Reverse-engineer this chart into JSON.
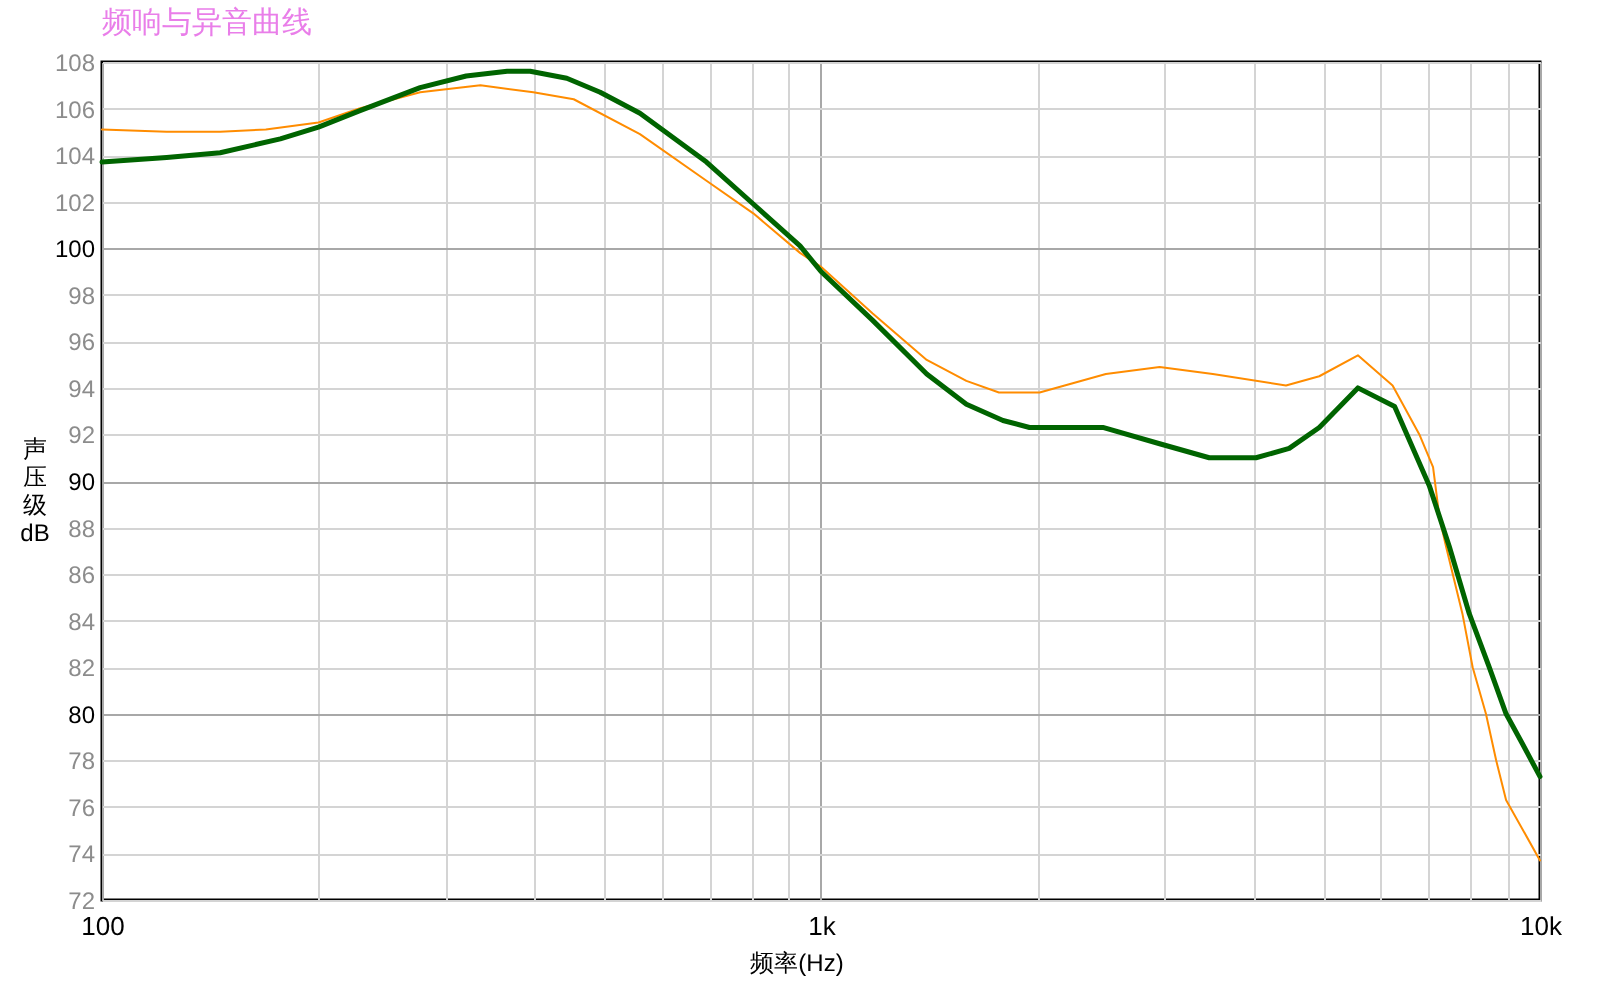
{
  "chart_data": {
    "type": "line",
    "title": "频响与异音曲线",
    "xlabel": "频率(Hz)",
    "ylabel": "声压级 dB",
    "log": "x",
    "grid": true,
    "legend": false,
    "xlim": [
      100,
      10000
    ],
    "ylim": [
      72,
      108
    ],
    "xticks": [
      100,
      {
        "value": 200,
        "label": null
      },
      {
        "value": 300,
        "label": null
      },
      {
        "value": 400,
        "label": null
      },
      {
        "value": 500,
        "label": null
      },
      {
        "value": 600,
        "label": null
      },
      {
        "value": 700,
        "label": null
      },
      {
        "value": 800,
        "label": null
      },
      {
        "value": 900,
        "label": null
      },
      {
        "value": 1000,
        "label": "1k"
      },
      {
        "value": 2000,
        "label": null
      },
      {
        "value": 3000,
        "label": null
      },
      {
        "value": 4000,
        "label": null
      },
      {
        "value": 5000,
        "label": null
      },
      {
        "value": 6000,
        "label": null
      },
      {
        "value": 7000,
        "label": null
      },
      {
        "value": 8000,
        "label": null
      },
      {
        "value": 9000,
        "label": null
      },
      {
        "value": 10000,
        "label": "10k"
      }
    ],
    "yticks": [
      72,
      74,
      76,
      78,
      80,
      82,
      84,
      86,
      88,
      90,
      92,
      94,
      96,
      98,
      100,
      102,
      104,
      106,
      108
    ],
    "series": [
      {
        "color": "#ff8c00",
        "x": [
          100,
          123,
          146,
          169,
          200,
          228,
          277,
          336,
          398,
          453,
          560,
          693,
          805,
          935,
          1000,
          1180,
          1403,
          1593,
          1768,
          2014,
          2490,
          2958,
          3507,
          4433,
          4932,
          5581,
          6237,
          6795,
          7100,
          7250,
          7400,
          7800,
          8060,
          8410,
          8690,
          8970,
          10000
        ],
        "values": [
          105.1,
          105.0,
          105.0,
          105.1,
          105.4,
          106.0,
          106.7,
          107.0,
          106.7,
          106.4,
          104.9,
          102.9,
          101.5,
          99.8,
          99.2,
          97.2,
          95.2,
          94.3,
          93.8,
          93.8,
          94.6,
          94.9,
          94.6,
          94.1,
          94.5,
          95.4,
          94.1,
          92.0,
          90.6,
          88.4,
          87.2,
          84.3,
          82.0,
          80.0,
          78.0,
          76.3,
          73.7
        ]
      },
      {
        "color": "#006400",
        "x": [
          100,
          123,
          146,
          177,
          200,
          228,
          277,
          321,
          366,
          394,
          443,
          493,
          560,
          693,
          805,
          935,
          1000,
          1180,
          1403,
          1593,
          1791,
          1950,
          2466,
          2958,
          3467,
          4027,
          4479,
          4932,
          5581,
          6278,
          7015,
          7477,
          7973,
          8499,
          8970,
          9457,
          10000
        ],
        "values": [
          103.7,
          103.9,
          104.1,
          104.7,
          105.2,
          105.9,
          106.9,
          107.4,
          107.6,
          107.6,
          107.3,
          106.7,
          105.8,
          103.7,
          101.9,
          100.1,
          99.0,
          96.9,
          94.6,
          93.3,
          92.6,
          92.3,
          92.3,
          91.6,
          91.0,
          91.0,
          91.4,
          92.3,
          94.0,
          93.2,
          89.8,
          87.2,
          84.3,
          82.0,
          80.0,
          78.7,
          77.3
        ]
      }
    ]
  }
}
